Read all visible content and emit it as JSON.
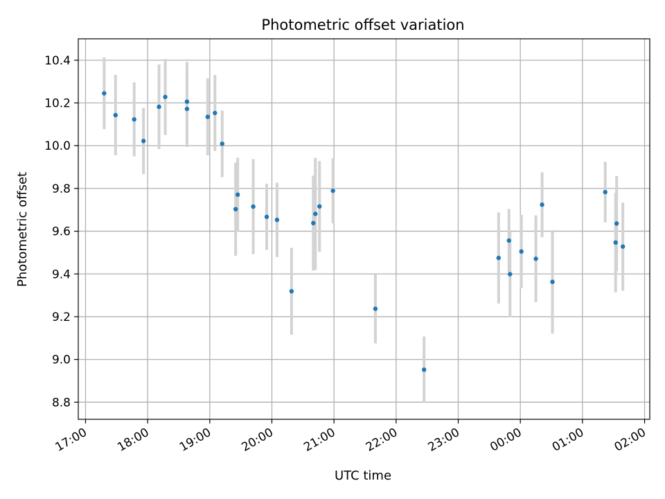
{
  "chart_data": {
    "type": "scatter",
    "title": "Photometric offset variation",
    "xlabel": "UTC time",
    "ylabel": "Photometric offset",
    "x_unit": "UTC time (day 1 from 17:00 to day 2 02:00)",
    "xlim": [
      "16:53",
      "02:05"
    ],
    "ylim": [
      8.72,
      10.5
    ],
    "x_ticks": [
      "17:00",
      "18:00",
      "19:00",
      "20:00",
      "21:00",
      "22:00",
      "23:00",
      "00:00",
      "01:00",
      "02:00"
    ],
    "y_ticks": [
      "8.8",
      "9.0",
      "9.2",
      "9.4",
      "9.6",
      "9.8",
      "10.0",
      "10.2",
      "10.4"
    ],
    "grid": true,
    "legend": "none",
    "colors": {
      "point": "#1f77b4",
      "errorbar": "#d3d3d3",
      "grid": "#b0b0b0"
    },
    "series": [
      {
        "points": [
          {
            "x": "17:18",
            "y": 10.245,
            "err": 0.168
          },
          {
            "x": "17:29",
            "y": 10.143,
            "err": 0.188
          },
          {
            "x": "17:47",
            "y": 10.123,
            "err": 0.173
          },
          {
            "x": "17:56",
            "y": 10.022,
            "err": 0.155
          },
          {
            "x": "18:11",
            "y": 10.182,
            "err": 0.198
          },
          {
            "x": "18:17",
            "y": 10.228,
            "err": 0.178
          },
          {
            "x": "18:38",
            "y": 10.206,
            "err": 0.186
          },
          {
            "x": "18:38",
            "y": 10.172,
            "err": 0.178
          },
          {
            "x": "18:58",
            "y": 10.135,
            "err": 0.18
          },
          {
            "x": "19:05",
            "y": 10.153,
            "err": 0.178
          },
          {
            "x": "19:12",
            "y": 10.009,
            "err": 0.156
          },
          {
            "x": "19:25",
            "y": 9.703,
            "err": 0.218
          },
          {
            "x": "19:27",
            "y": 9.771,
            "err": 0.173
          },
          {
            "x": "19:42",
            "y": 9.715,
            "err": 0.222
          },
          {
            "x": "19:55",
            "y": 9.667,
            "err": 0.155
          },
          {
            "x": "20:05",
            "y": 9.653,
            "err": 0.174
          },
          {
            "x": "20:19",
            "y": 9.319,
            "err": 0.203
          },
          {
            "x": "20:40",
            "y": 9.638,
            "err": 0.222
          },
          {
            "x": "20:42",
            "y": 9.681,
            "err": 0.262
          },
          {
            "x": "20:46",
            "y": 9.716,
            "err": 0.212
          },
          {
            "x": "20:59",
            "y": 9.789,
            "err": 0.152
          },
          {
            "x": "21:40",
            "y": 9.237,
            "err": 0.162
          },
          {
            "x": "22:27",
            "y": 8.952,
            "err": 0.155
          },
          {
            "x": "23:39",
            "y": 9.475,
            "err": 0.213
          },
          {
            "x": "23:49",
            "y": 9.556,
            "err": 0.148
          },
          {
            "x": "23:50",
            "y": 9.399,
            "err": 0.2
          },
          {
            "x": "00:01",
            "y": 9.505,
            "err": 0.172
          },
          {
            "x": "00:15",
            "y": 9.471,
            "err": 0.203
          },
          {
            "x": "00:21",
            "y": 9.724,
            "err": 0.152
          },
          {
            "x": "00:31",
            "y": 9.363,
            "err": 0.242
          },
          {
            "x": "01:22",
            "y": 9.783,
            "err": 0.142
          },
          {
            "x": "01:32",
            "y": 9.547,
            "err": 0.233
          },
          {
            "x": "01:33",
            "y": 9.636,
            "err": 0.222
          },
          {
            "x": "01:39",
            "y": 9.528,
            "err": 0.206
          }
        ]
      }
    ]
  }
}
